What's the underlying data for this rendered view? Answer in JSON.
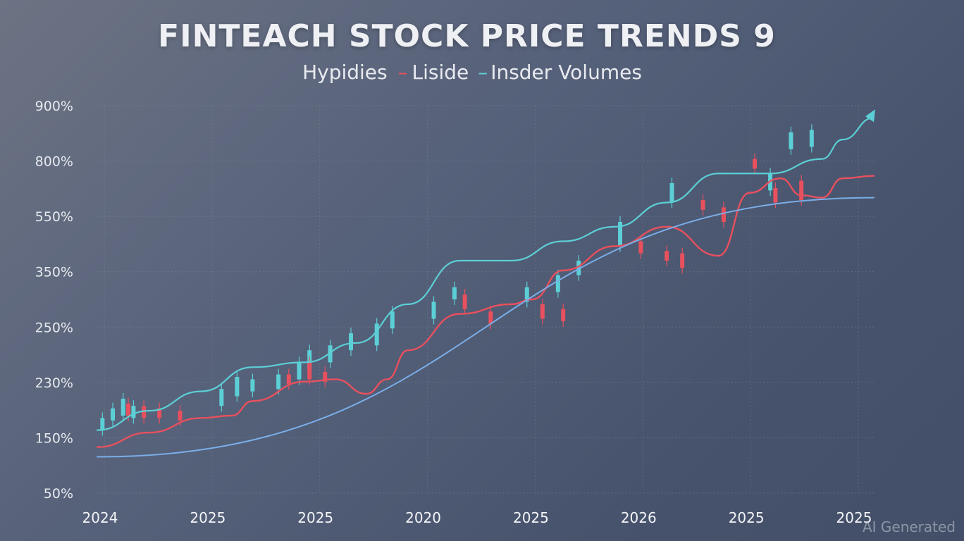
{
  "title": "FINTEACH STOCK PRICE TRENDS 9",
  "legend": {
    "item1": "Hypidies",
    "item2": "Liside",
    "item3": "Insder Volumes"
  },
  "watermark": "AI Generated",
  "colors": {
    "red": "#e8505e",
    "teal": "#5ccfd6",
    "blue": "#7aaee8",
    "grid": "#8d97aa"
  },
  "chart_data": {
    "type": "line",
    "title": "FINTEACH STOCK PRICE TRENDS 9",
    "y_ticks": [
      "900%",
      "800%",
      "550%",
      "350%",
      "250%",
      "230%",
      "150%",
      "50%"
    ],
    "x_ticks": [
      "2024",
      "2025",
      "2025",
      "2020",
      "2025",
      "2026",
      "2025",
      "2025"
    ],
    "grid": true,
    "series": [
      {
        "name": "Insder Volumes",
        "style": "teal upper trend with candlesticks",
        "x": [
          0,
          0.5,
          1,
          1.5,
          2,
          2.5,
          3,
          3.5,
          4,
          4.5,
          5,
          5.5,
          6,
          6.5,
          7,
          7.2,
          7.5
        ],
        "values": [
          1.3,
          1.7,
          2.1,
          2.6,
          2.7,
          3.1,
          3.9,
          4.8,
          4.8,
          5.2,
          5.5,
          6.0,
          6.6,
          6.6,
          6.9,
          7.3,
          7.75
        ]
      },
      {
        "name": "Liside",
        "style": "red middle trend",
        "x": [
          0,
          0.5,
          1,
          1.3,
          1.5,
          2,
          2.3,
          2.6,
          2.8,
          3.0,
          3.5,
          4.0,
          4.2,
          4.5,
          5.0,
          5.5,
          6.0,
          6.3,
          6.6,
          6.8,
          7.0,
          7.2,
          7.5
        ],
        "values": [
          0.95,
          1.25,
          1.55,
          1.6,
          1.9,
          2.3,
          2.35,
          2.05,
          2.35,
          2.95,
          3.7,
          3.9,
          4.0,
          4.6,
          5.1,
          5.5,
          4.9,
          6.2,
          6.5,
          6.15,
          6.1,
          6.5,
          6.55
        ]
      },
      {
        "name": "Hypidies",
        "style": "blue lower baseline",
        "x": [
          0,
          7.5
        ],
        "values": [
          0.75,
          6.1
        ]
      }
    ],
    "candles": {
      "teal_up": [
        [
          0.05,
          1.3,
          1.55
        ],
        [
          0.15,
          1.5,
          1.75
        ],
        [
          0.25,
          1.6,
          1.95
        ],
        [
          0.35,
          1.55,
          1.8
        ],
        [
          1.2,
          1.8,
          2.15
        ],
        [
          1.35,
          2.0,
          2.4
        ],
        [
          1.5,
          2.1,
          2.35
        ],
        [
          1.75,
          2.15,
          2.45
        ],
        [
          1.95,
          2.35,
          2.7
        ],
        [
          2.05,
          2.55,
          2.95
        ],
        [
          2.25,
          2.7,
          3.05
        ],
        [
          2.45,
          2.95,
          3.3
        ],
        [
          2.7,
          3.05,
          3.5
        ],
        [
          2.85,
          3.4,
          3.75
        ],
        [
          3.25,
          3.6,
          3.95
        ],
        [
          3.45,
          4.0,
          4.25
        ],
        [
          4.15,
          3.95,
          4.25
        ],
        [
          4.45,
          4.15,
          4.5
        ],
        [
          4.65,
          4.5,
          4.8
        ],
        [
          5.05,
          5.1,
          5.6
        ],
        [
          5.55,
          6.0,
          6.4
        ],
        [
          6.5,
          6.25,
          6.6
        ],
        [
          6.7,
          7.1,
          7.45
        ],
        [
          6.9,
          7.15,
          7.5
        ]
      ],
      "red_down": [
        [
          0.3,
          1.85,
          1.6
        ],
        [
          0.45,
          1.8,
          1.55
        ],
        [
          0.6,
          1.75,
          1.55
        ],
        [
          0.8,
          1.7,
          1.5
        ],
        [
          1.85,
          2.45,
          2.25
        ],
        [
          2.05,
          2.7,
          2.35
        ],
        [
          2.2,
          2.5,
          2.3
        ],
        [
          3.55,
          4.1,
          3.8
        ],
        [
          3.8,
          3.75,
          3.5
        ],
        [
          4.3,
          3.9,
          3.6
        ],
        [
          4.5,
          3.8,
          3.55
        ],
        [
          5.25,
          5.2,
          4.95
        ],
        [
          5.5,
          5.0,
          4.8
        ],
        [
          5.65,
          4.95,
          4.65
        ],
        [
          5.85,
          6.05,
          5.85
        ],
        [
          6.05,
          5.9,
          5.6
        ],
        [
          6.35,
          6.9,
          6.7
        ],
        [
          6.55,
          6.3,
          6.0
        ],
        [
          6.8,
          6.45,
          6.05
        ]
      ]
    },
    "ylim": [
      0,
      8
    ],
    "xlim": [
      0,
      7.5
    ]
  }
}
